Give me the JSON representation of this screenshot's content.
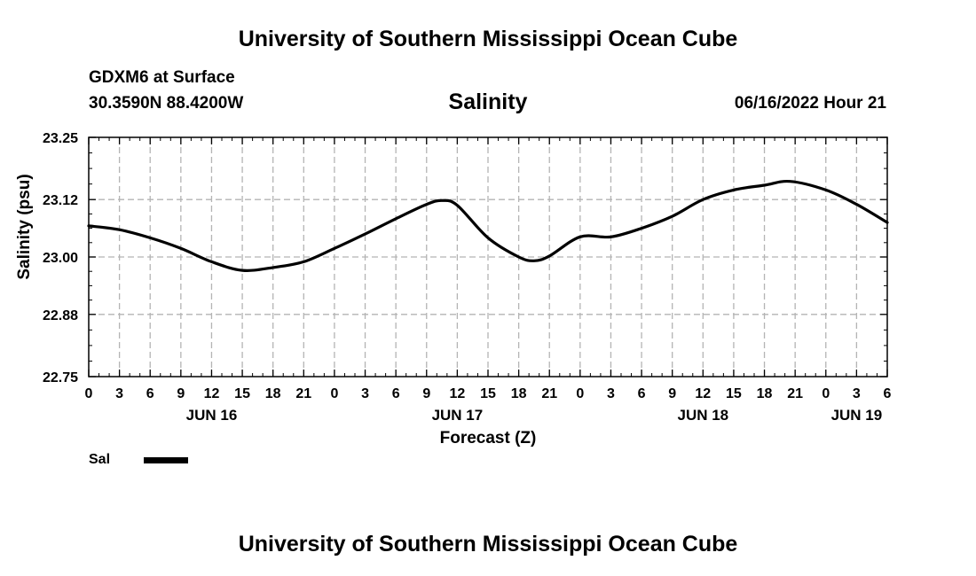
{
  "header": {
    "title": "University of Southern Mississippi Ocean Cube",
    "station": "GDXM6 at Surface",
    "coordinates": "30.3590N  88.4200W",
    "chart_title": "Salinity",
    "run_time": "06/16/2022 Hour 21"
  },
  "footer": {
    "title": "University of Southern Mississippi Ocean Cube"
  },
  "legend": [
    {
      "label": "Sal",
      "color": "#000000"
    }
  ],
  "chart_data": {
    "type": "line",
    "title": "Salinity",
    "xlabel": "Forecast (Z)",
    "ylabel": "Salinity (psu)",
    "xlim": [
      0,
      78
    ],
    "ylim": [
      22.75,
      23.25
    ],
    "yticks": [
      22.75,
      22.88,
      23.0,
      23.12,
      23.25
    ],
    "ytick_labels": [
      "22.75",
      "22.88",
      "23.00",
      "23.12",
      "23.25"
    ],
    "xticks": [
      0,
      3,
      6,
      9,
      12,
      15,
      18,
      21,
      24,
      27,
      30,
      33,
      36,
      39,
      42,
      45,
      48,
      51,
      54,
      57,
      60,
      63,
      66,
      69,
      72,
      75,
      78
    ],
    "xtick_labels": [
      "0",
      "3",
      "6",
      "9",
      "12",
      "15",
      "18",
      "21",
      "0",
      "3",
      "6",
      "9",
      "12",
      "15",
      "18",
      "21",
      "0",
      "3",
      "6",
      "9",
      "12",
      "15",
      "18",
      "21",
      "0",
      "3",
      "6"
    ],
    "date_labels": [
      {
        "label": "JUN 16",
        "x": 12
      },
      {
        "label": "JUN 17",
        "x": 36
      },
      {
        "label": "JUN 18",
        "x": 60
      },
      {
        "label": "JUN 19",
        "x": 75
      }
    ],
    "grid": true,
    "series": [
      {
        "name": "Sal",
        "color": "#000000",
        "x": [
          0,
          3,
          6,
          9,
          12,
          15,
          18,
          21,
          24,
          27,
          30,
          33,
          34.5,
          36,
          39,
          42,
          43.5,
          45,
          48,
          51,
          54,
          57,
          60,
          63,
          66,
          68.5,
          72,
          75,
          78
        ],
        "y": [
          23.065,
          23.057,
          23.04,
          23.018,
          22.99,
          22.972,
          22.978,
          22.99,
          23.018,
          23.048,
          23.08,
          23.11,
          23.118,
          23.108,
          23.04,
          23.0,
          22.992,
          23.002,
          23.042,
          23.042,
          23.06,
          23.085,
          23.12,
          23.14,
          23.15,
          23.158,
          23.14,
          23.11,
          23.072
        ]
      }
    ]
  }
}
